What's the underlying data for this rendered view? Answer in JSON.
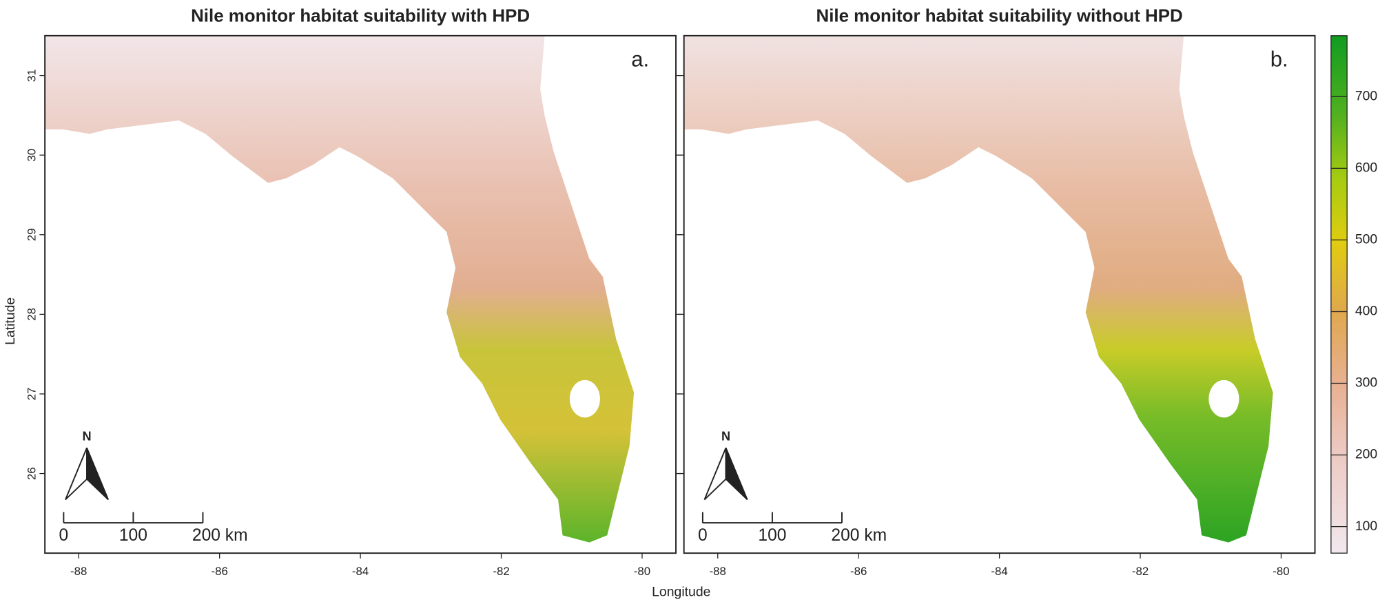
{
  "x_axis_label": "Longitude",
  "y_axis_label": "Latitude",
  "panels": [
    {
      "title": "Nile monitor habitat suitability with HPD",
      "label": "a."
    },
    {
      "title": "Nile monitor habitat suitability without HPD",
      "label": "b."
    }
  ],
  "xlim": [
    -88.48,
    -79.52
  ],
  "xticks": [
    -88,
    -86,
    -84,
    -82,
    -80
  ],
  "ylim": [
    25.0,
    31.5
  ],
  "yticks": [
    26,
    27,
    28,
    29,
    30,
    31
  ],
  "north_arrow_label": "N",
  "scale_bar": {
    "labels": [
      "0",
      "100",
      "200 km"
    ]
  },
  "colorbar": {
    "lim": [
      63,
      785
    ],
    "ticks": [
      100,
      200,
      300,
      400,
      500,
      600,
      700
    ]
  }
}
